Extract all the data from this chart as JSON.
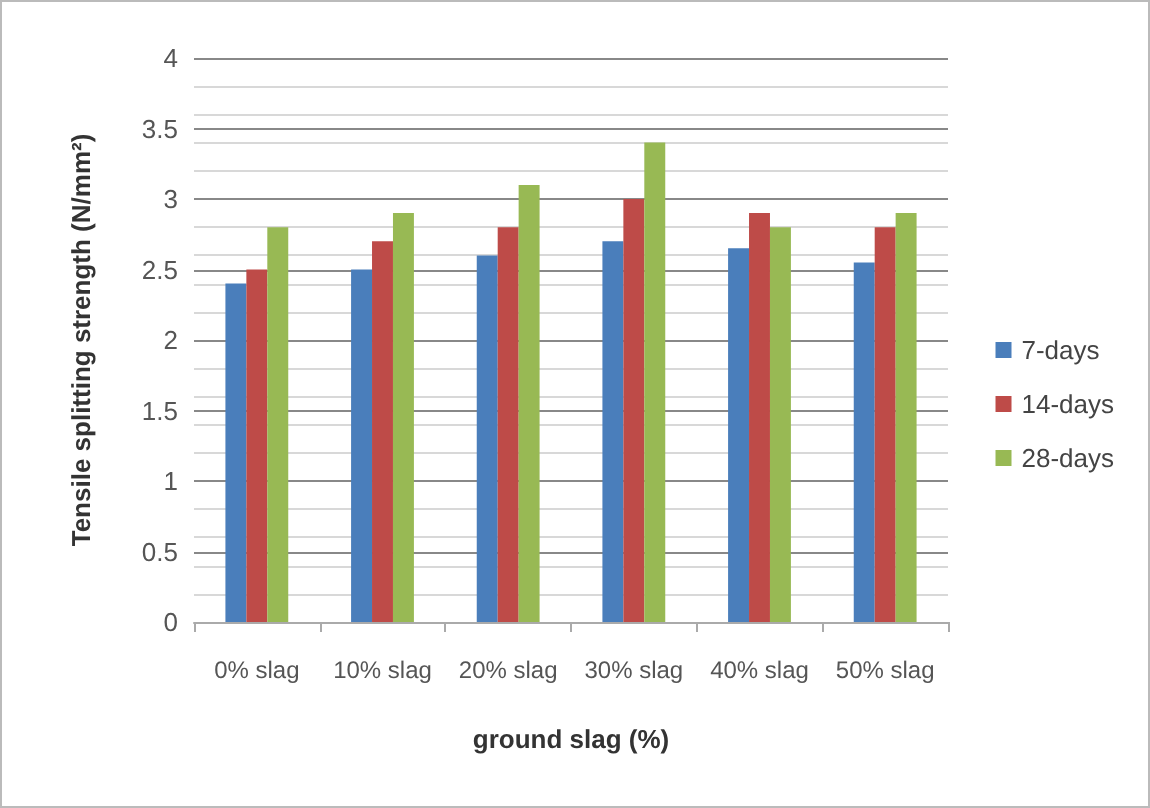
{
  "chart_data": {
    "type": "bar",
    "xlabel": "ground slag (%)",
    "ylabel": "Tensile splitting strength (N/mm²)",
    "categories": [
      "0% slag",
      "10% slag",
      "20% slag",
      "30% slag",
      "40% slag",
      "50% slag"
    ],
    "series": [
      {
        "name": "7-days",
        "color": "#4a7ebb",
        "values": [
          2.4,
          2.5,
          2.6,
          2.7,
          2.65,
          2.55
        ]
      },
      {
        "name": "14-days",
        "color": "#be4b48",
        "values": [
          2.5,
          2.7,
          2.8,
          3.0,
          2.9,
          2.8
        ]
      },
      {
        "name": "28-days",
        "color": "#98b954",
        "values": [
          2.8,
          2.9,
          3.1,
          3.4,
          2.8,
          2.9
        ]
      }
    ],
    "ylim": [
      0,
      4
    ],
    "yticks": [
      0,
      0.5,
      1,
      1.5,
      2,
      2.5,
      3,
      3.5,
      4
    ],
    "grid": "y",
    "legend": "right"
  }
}
